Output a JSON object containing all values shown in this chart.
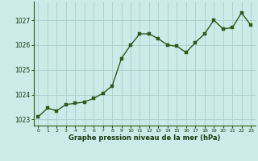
{
  "x": [
    0,
    1,
    2,
    3,
    4,
    5,
    6,
    7,
    8,
    9,
    10,
    11,
    12,
    13,
    14,
    15,
    16,
    17,
    18,
    19,
    20,
    21,
    22,
    23
  ],
  "y": [
    1023.1,
    1023.45,
    1023.35,
    1023.6,
    1023.65,
    1023.7,
    1023.85,
    1024.05,
    1024.35,
    1025.45,
    1026.0,
    1026.45,
    1026.45,
    1026.25,
    1026.0,
    1025.95,
    1025.7,
    1026.1,
    1026.45,
    1027.0,
    1026.65,
    1026.7,
    1027.3,
    1026.8
  ],
  "bg_color": "#cceae7",
  "line_color": "#2d5a1b",
  "marker_color": "#2d5a1b",
  "grid_color": "#aacfcc",
  "xlabel": "Graphe pression niveau de la mer (hPa)",
  "xlabel_color": "#1a3a10",
  "tick_color": "#1a3a10",
  "ylim_min": 1022.75,
  "ylim_max": 1027.75,
  "yticks": [
    1023,
    1024,
    1025,
    1026,
    1027
  ],
  "xticks": [
    0,
    1,
    2,
    3,
    4,
    5,
    6,
    7,
    8,
    9,
    10,
    11,
    12,
    13,
    14,
    15,
    16,
    17,
    18,
    19,
    20,
    21,
    22,
    23
  ],
  "line_width": 1.0,
  "marker_size": 2.8,
  "spine_color": "#2d5a1b"
}
